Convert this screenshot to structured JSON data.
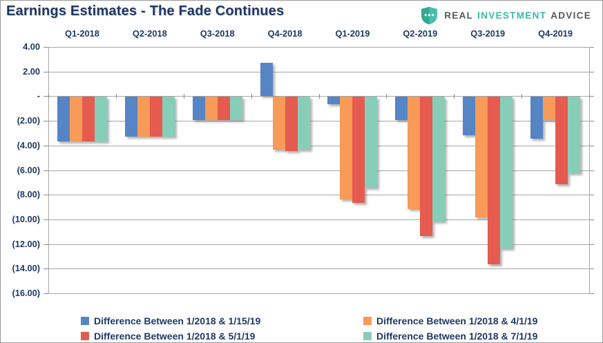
{
  "header": {
    "title": "Earnings Estimates - The Fade Continues",
    "logo": {
      "word1": "REAL",
      "word2": "INVESTMENT",
      "word3": "ADVICE"
    }
  },
  "colors": {
    "text_navy": "#1F3864",
    "gridline": "#A6A6A6",
    "logo_teal": "#3EB7A4",
    "logo_gray": "#55565A",
    "series_blue": "#5585C5",
    "series_orange": "#F89A58",
    "series_red": "#E55B4F",
    "series_teal": "#87CEB9"
  },
  "chart_data": {
    "type": "bar",
    "title": "Earnings Estimates - The Fade Continues",
    "categories": [
      "Q1-2018",
      "Q2-2018",
      "Q3-2018",
      "Q4-2018",
      "Q1-2019",
      "Q2-2019",
      "Q3-2019",
      "Q4-2019"
    ],
    "series": [
      {
        "name": "Difference Between 1/2018 & 1/15/19",
        "color": "#5585C5",
        "values": [
          -3.6,
          -3.2,
          -1.9,
          2.7,
          -0.6,
          -1.9,
          -3.1,
          -3.4
        ]
      },
      {
        "name": "Difference Between 1/2018 & 4/1/19",
        "color": "#F89A58",
        "values": [
          -3.6,
          -3.2,
          -1.9,
          -4.3,
          -8.3,
          -9.1,
          -9.8,
          -1.9
        ]
      },
      {
        "name": "Difference Between 1/2018 & 5/1/19",
        "color": "#E55B4F",
        "values": [
          -3.6,
          -3.2,
          -1.9,
          -4.4,
          -8.6,
          -11.3,
          -13.6,
          -7.1
        ]
      },
      {
        "name": "Difference Between 1/2018 & 7/1/19",
        "color": "#87CEB9",
        "values": [
          -3.6,
          -3.2,
          -1.9,
          -4.3,
          -7.4,
          -10.1,
          -12.3,
          -6.2
        ]
      }
    ],
    "y_axis": {
      "min": -16,
      "max": 4,
      "step": 2,
      "tick_labels": [
        "4.00",
        "2.00",
        "-",
        "(2.00)",
        "(4.00)",
        "(6.00)",
        "(8.00)",
        "(10.00)",
        "(12.00)",
        "(14.00)",
        "(16.00)"
      ]
    },
    "grid": true,
    "legend_position": "bottom",
    "legend_columns": 2,
    "category_labels_position": "top"
  }
}
